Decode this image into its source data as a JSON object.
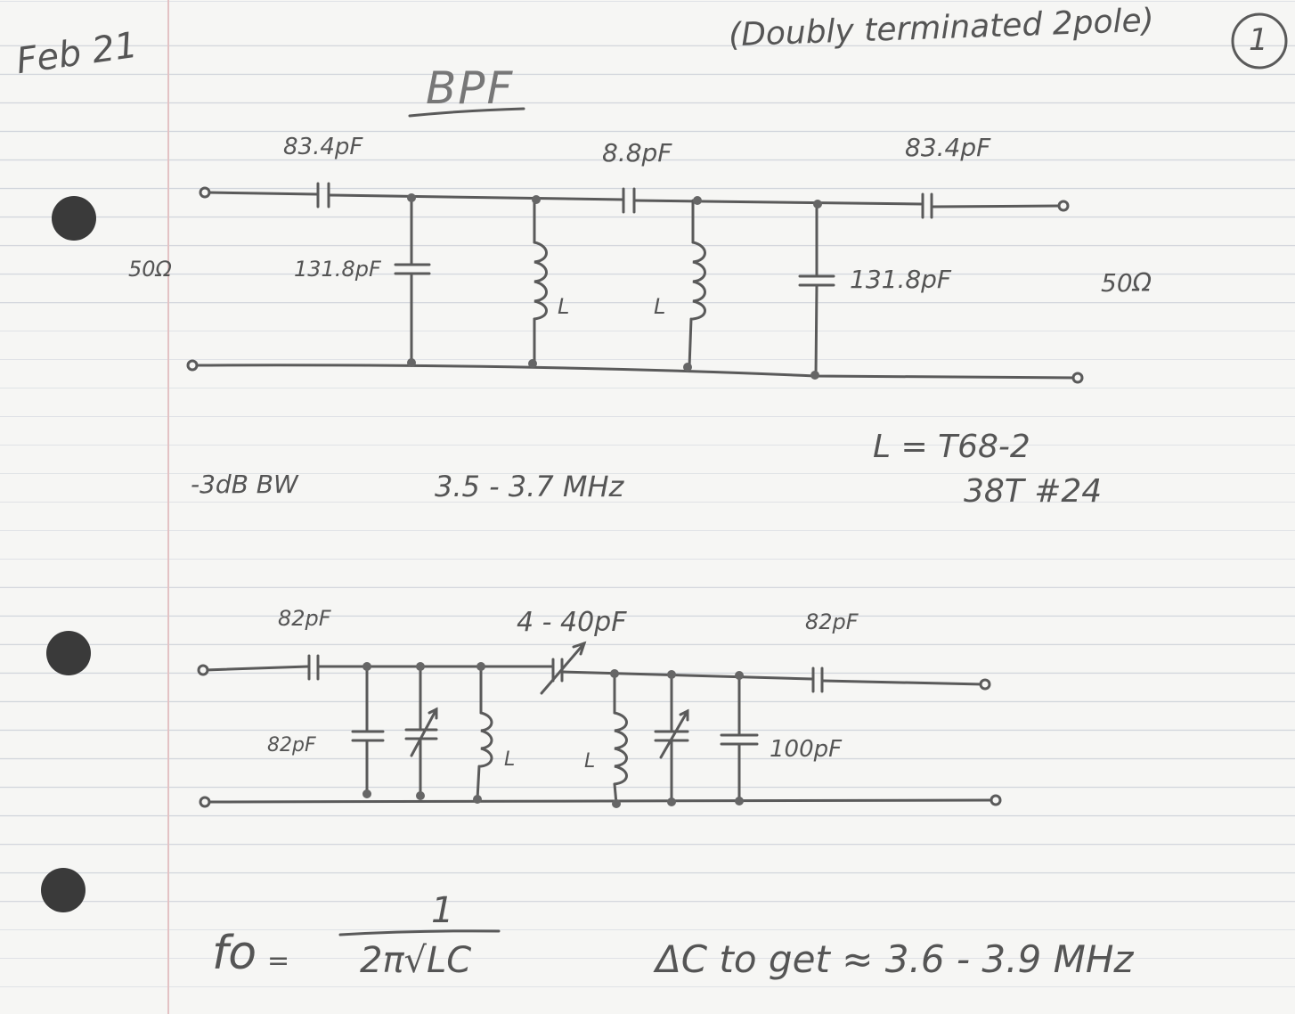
{
  "header": {
    "date": "Feb 21",
    "note": "(Doubly terminated 2pole)",
    "page_number": "1",
    "title": "BPF"
  },
  "circuit1": {
    "series_cap_in": "83.4pF",
    "coupling_cap": "8.8pF",
    "series_cap_out": "83.4pF",
    "shunt_cap_left": "131.8pF",
    "shunt_cap_right": "131.8pF",
    "inductor_left": "L",
    "inductor_right": "L",
    "source_impedance": "50Ω",
    "load_impedance": "50Ω"
  },
  "specs": {
    "bandwidth_label": "-3dB BW",
    "bandwidth_value": "3.5 - 3.7 MHz",
    "inductor_core": "L = T68-2",
    "inductor_winding": "38T #24"
  },
  "circuit2": {
    "series_cap_in": "82pF",
    "variable_coupling_cap": "4 - 40pF",
    "series_cap_out": "82pF",
    "shunt_cap_left": "82pF",
    "shunt_cap_right": "100pF",
    "inductor_left": "L",
    "inductor_right": "L"
  },
  "formula": {
    "lhs": "fo",
    "equals": "=",
    "numerator": "1",
    "denominator": "2π√LC",
    "tuning_note": "ΔC to get ≈ 3.6 - 3.9 MHz"
  },
  "colors": {
    "pencil": "#555555",
    "paper": "#f6f6f4",
    "ruling": "#d2d6dc",
    "margin": "#e3c2c4",
    "hole": "#3a3a3a"
  }
}
